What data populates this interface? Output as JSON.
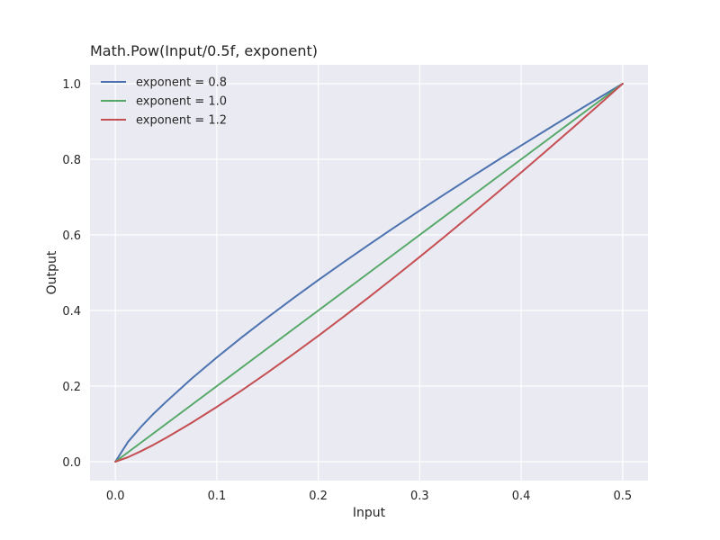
{
  "chart_data": {
    "type": "line",
    "title": "Math.Pow(Input/0.5f, exponent)",
    "xlabel": "Input",
    "ylabel": "Output",
    "xlim": [
      -0.025,
      0.525
    ],
    "ylim": [
      -0.05,
      1.05
    ],
    "xticks": [
      0.0,
      0.1,
      0.2,
      0.3,
      0.4,
      0.5
    ],
    "xtick_labels": [
      "0.0",
      "0.1",
      "0.2",
      "0.3",
      "0.4",
      "0.5"
    ],
    "yticks": [
      0.0,
      0.2,
      0.4,
      0.6,
      0.8,
      1.0
    ],
    "ytick_labels": [
      "0.0",
      "0.2",
      "0.4",
      "0.6",
      "0.8",
      "1.0"
    ],
    "grid": true,
    "legend_position": "top-left",
    "x": [
      0.0,
      0.0125,
      0.025,
      0.0375,
      0.05,
      0.075,
      0.1,
      0.125,
      0.15,
      0.175,
      0.2,
      0.225,
      0.25,
      0.275,
      0.3,
      0.325,
      0.35,
      0.375,
      0.4,
      0.425,
      0.45,
      0.475,
      0.5
    ],
    "series": [
      {
        "name": "exponent = 0.8",
        "color": "#4c72b0",
        "values": [
          0.0,
          0.0525,
          0.0914,
          0.1265,
          0.1585,
          0.2193,
          0.2759,
          0.3299,
          0.3816,
          0.4317,
          0.4804,
          0.5279,
          0.5743,
          0.6199,
          0.6645,
          0.7085,
          0.7517,
          0.7943,
          0.8365,
          0.878,
          0.9192,
          0.9598,
          1.0
        ]
      },
      {
        "name": "exponent = 1.0",
        "color": "#55a868",
        "values": [
          0.0,
          0.025,
          0.05,
          0.075,
          0.1,
          0.15,
          0.2,
          0.25,
          0.3,
          0.35,
          0.4,
          0.45,
          0.5,
          0.55,
          0.6,
          0.65,
          0.7,
          0.75,
          0.8,
          0.85,
          0.9,
          0.95,
          1.0
        ]
      },
      {
        "name": "exponent = 1.2",
        "color": "#c44e52",
        "values": [
          0.0,
          0.0119,
          0.0275,
          0.0445,
          0.0631,
          0.1027,
          0.145,
          0.1895,
          0.2358,
          0.2837,
          0.333,
          0.3836,
          0.4353,
          0.4881,
          0.5418,
          0.5965,
          0.652,
          0.7083,
          0.7651,
          0.8228,
          0.8811,
          0.9403,
          1.0
        ]
      }
    ]
  }
}
